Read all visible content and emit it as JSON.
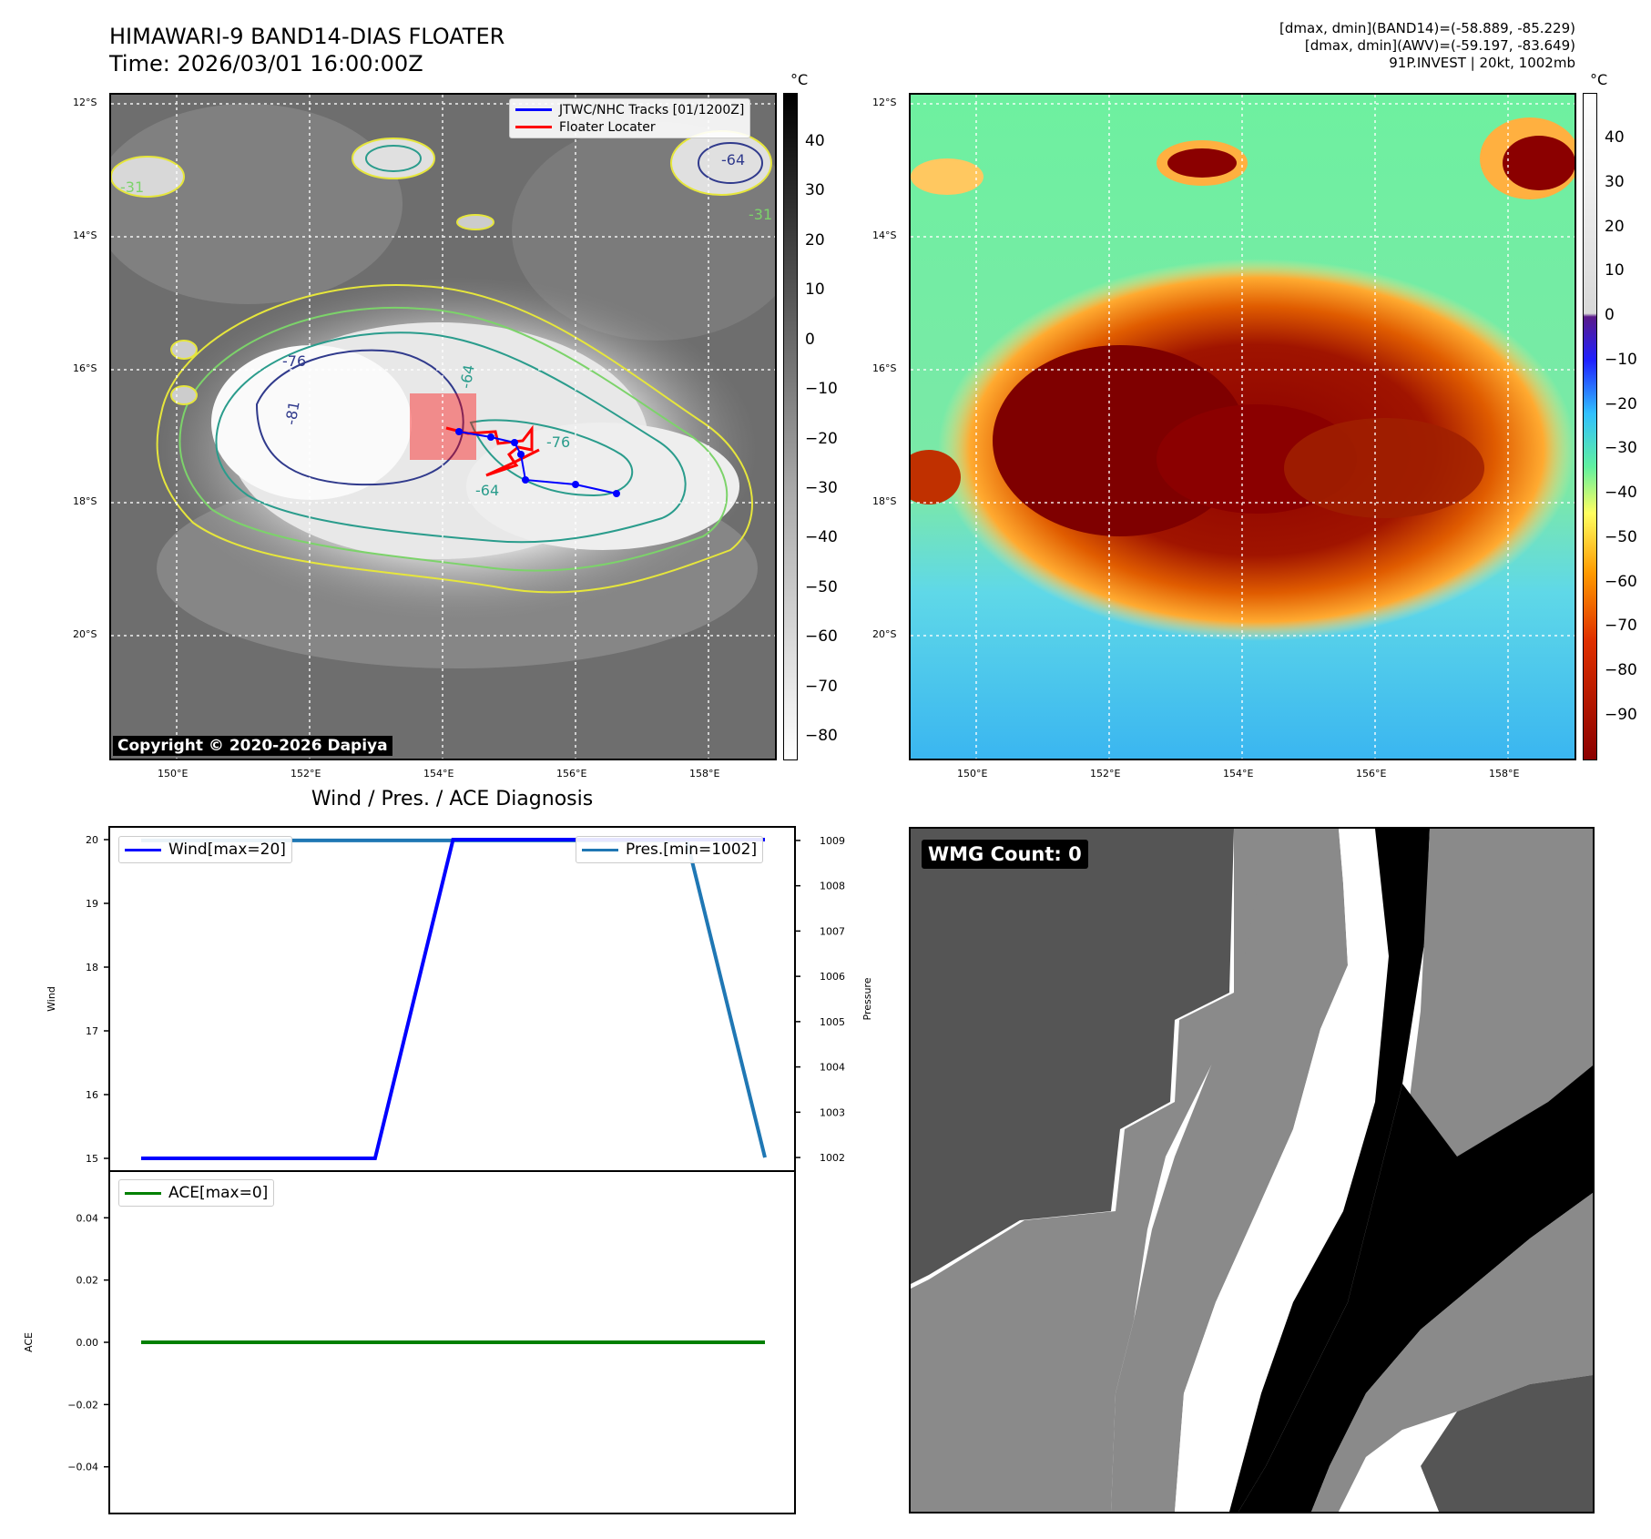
{
  "header": {
    "title_line1": "HIMAWARI-9 BAND14-DIAS FLOATER",
    "title_line2": "Time: 2026/03/01 16:00:00Z",
    "stat_band14": "[dmax, dmin](BAND14)=(-58.889, -85.229)",
    "stat_awv": "[dmax, dmin](AWV)=(-59.197, -83.649)",
    "stat_storm": "91P.INVEST | 20kt, 1002mb"
  },
  "map": {
    "lat_ticks": [
      "12°S",
      "14°S",
      "16°S",
      "18°S",
      "20°S"
    ],
    "lon_ticks": [
      "150°E",
      "152°E",
      "154°E",
      "156°E",
      "158°E"
    ],
    "copyright": "Copyright © 2020-2026 Dapiya",
    "legend_tracks": "JTWC/NHC Tracks [01/1200Z]",
    "legend_floater": "Floater Locater",
    "contour_labels": [
      "-76",
      "-81",
      "-64",
      "-76",
      "-64",
      "-31",
      "-64",
      "-31"
    ],
    "track_color": "#0000ff",
    "floater_color": "#ff0000"
  },
  "colorbar_left": {
    "unit": "°C",
    "ticks": [
      "40",
      "30",
      "20",
      "10",
      "0",
      "−10",
      "−20",
      "−30",
      "−40",
      "−50",
      "−60",
      "−70",
      "−80"
    ]
  },
  "colorbar_right": {
    "unit": "°C",
    "ticks": [
      "40",
      "30",
      "20",
      "10",
      "0",
      "−10",
      "−20",
      "−30",
      "−40",
      "−50",
      "−60",
      "−70",
      "−80",
      "−90"
    ]
  },
  "diag": {
    "title": "Wind / Pres. / ACE Diagnosis",
    "wind_ylabel": "Wind",
    "pressure_ylabel": "Pressure",
    "ace_ylabel": "ACE",
    "wind_legend": "Wind[max=20]",
    "pres_legend": "Pres.[min=1002]",
    "ace_legend": "ACE[max=0]",
    "wind_color": "#0000ff",
    "pres_color": "#1f77b4",
    "ace_color": "#008000"
  },
  "wmg": {
    "label": "WMG Count: 0"
  },
  "chart_data": [
    {
      "type": "line",
      "name": "wind",
      "x": [
        0,
        1,
        2,
        3,
        4,
        5,
        6,
        7,
        8
      ],
      "values": [
        15,
        15,
        15,
        15,
        20,
        20,
        20,
        20,
        20
      ],
      "ylim": [
        14.8,
        20.2
      ],
      "yticks": [
        "15",
        "16",
        "17",
        "18",
        "19",
        "20"
      ]
    },
    {
      "type": "line",
      "name": "pressure",
      "x": [
        0,
        1,
        2,
        3,
        4,
        5,
        6,
        7,
        8
      ],
      "values": [
        1009,
        1009,
        1009,
        1009,
        1009,
        1009,
        1009,
        1009,
        1002
      ],
      "ylim": [
        1001.7,
        1009.3
      ],
      "yticks": [
        "1002",
        "1003",
        "1004",
        "1005",
        "1006",
        "1007",
        "1008",
        "1009"
      ]
    },
    {
      "type": "line",
      "name": "ace",
      "x": [
        0,
        8
      ],
      "values": [
        0,
        0
      ],
      "ylim": [
        -0.055,
        0.055
      ],
      "yticks": [
        "0.04",
        "0.02",
        "0.00",
        "−0.02",
        "−0.04"
      ]
    }
  ]
}
